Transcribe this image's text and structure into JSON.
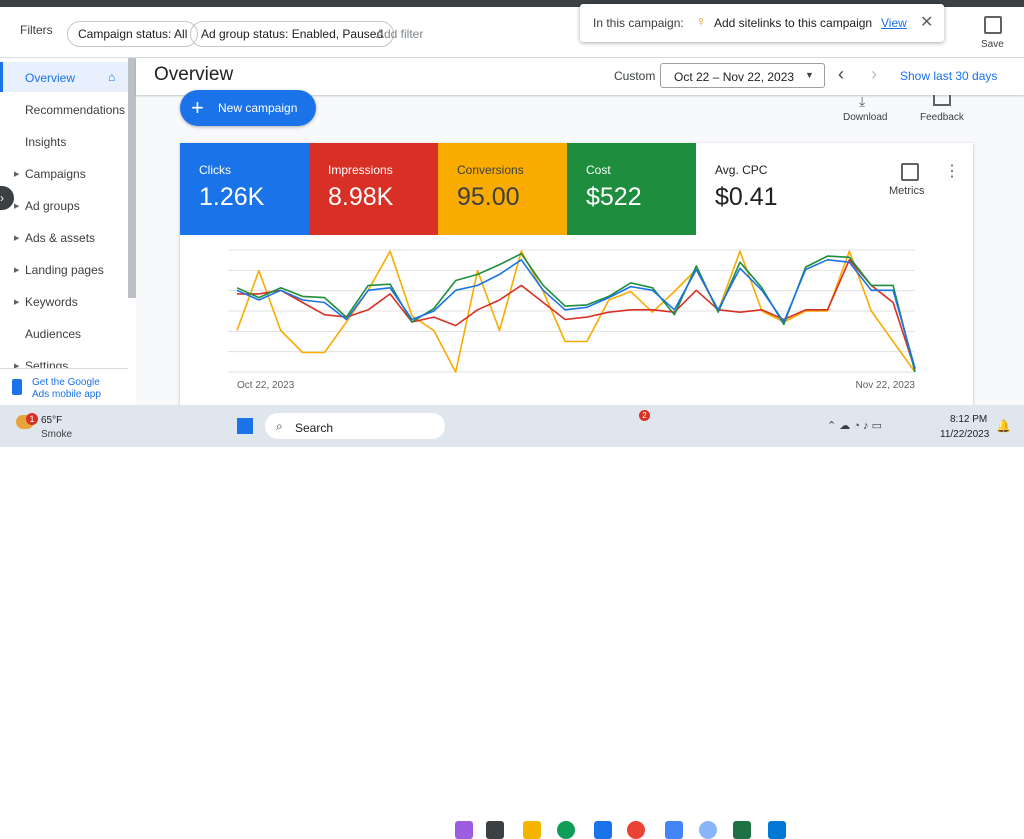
{
  "top_bar": {
    "filters_label": "Filters",
    "chips": [
      "Campaign status: All",
      "Ad group status: Enabled, Paused"
    ],
    "add_filter": "Add filter",
    "notice_prefix": "In this campaign:",
    "notice_text": "Add sitelinks to this campaign",
    "notice_link": "View",
    "save": "Save"
  },
  "sidebar": {
    "items": [
      "Overview",
      "Recommendations",
      "Insights",
      "Campaigns",
      "Ad groups",
      "Ads & assets",
      "Landing pages",
      "Keywords",
      "Audiences",
      "Settings"
    ],
    "mobile_app": "Get the Google Ads mobile app"
  },
  "header": {
    "title": "Overview",
    "range_type": "Custom",
    "date_range": "Oct 22 – Nov 22, 2023",
    "show_last": "Show last 30 days"
  },
  "actions": {
    "new_campaign": "New campaign",
    "download": "Download",
    "feedback": "Feedback",
    "metrics": "Metrics"
  },
  "metrics": [
    {
      "label": "Clicks",
      "value": "1.26K"
    },
    {
      "label": "Impressions",
      "value": "8.98K"
    },
    {
      "label": "Conversions",
      "value": "95.00"
    },
    {
      "label": "Cost",
      "value": "$522"
    },
    {
      "label": "Avg. CPC",
      "value": "$0.41"
    }
  ],
  "chart_data": {
    "type": "line",
    "categories": [
      "Oct 22, 2023",
      null,
      null,
      null,
      null,
      null,
      null,
      null,
      null,
      null,
      null,
      null,
      null,
      null,
      null,
      null,
      null,
      null,
      null,
      null,
      null,
      null,
      null,
      null,
      null,
      null,
      null,
      null,
      null,
      null,
      null,
      "Nov 22, 2023"
    ],
    "ylim": [
      0,
      100
    ],
    "series": [
      {
        "color": "#f9ab00",
        "values": [
          34,
          83,
          34,
          16,
          16,
          41,
          67,
          99,
          46,
          34,
          0,
          83,
          34,
          99,
          66,
          25,
          25,
          59,
          66,
          49,
          66,
          84,
          50,
          99,
          50,
          41,
          50,
          50,
          99,
          50,
          25,
          0
        ]
      },
      {
        "color": "#d93025",
        "values": [
          64,
          64,
          67,
          57,
          47,
          45,
          51,
          64,
          41,
          45,
          38,
          51,
          59,
          71,
          57,
          43,
          45,
          49,
          51,
          51,
          49,
          67,
          51,
          49,
          51,
          43,
          51,
          51,
          92,
          71,
          57,
          2
        ]
      },
      {
        "color": "#1e8e3e",
        "values": [
          69,
          61,
          69,
          62,
          61,
          45,
          71,
          72,
          41,
          52,
          75,
          80,
          88,
          97,
          71,
          54,
          55,
          62,
          73,
          69,
          47,
          87,
          49,
          90,
          69,
          39,
          86,
          95,
          94,
          71,
          71,
          0
        ]
      },
      {
        "color": "#1a73e8",
        "values": [
          67,
          59,
          67,
          59,
          57,
          43,
          67,
          69,
          43,
          50,
          67,
          71,
          80,
          92,
          67,
          51,
          53,
          61,
          70,
          67,
          51,
          84,
          51,
          85,
          67,
          41,
          84,
          92,
          90,
          67,
          67,
          3
        ]
      }
    ]
  },
  "taskbar": {
    "temp": "65°F",
    "weather": "Smoke",
    "weather_badge": "1",
    "search": "Search",
    "chrome_badge": "2",
    "time": "8:12 PM",
    "date": "11/22/2023"
  }
}
